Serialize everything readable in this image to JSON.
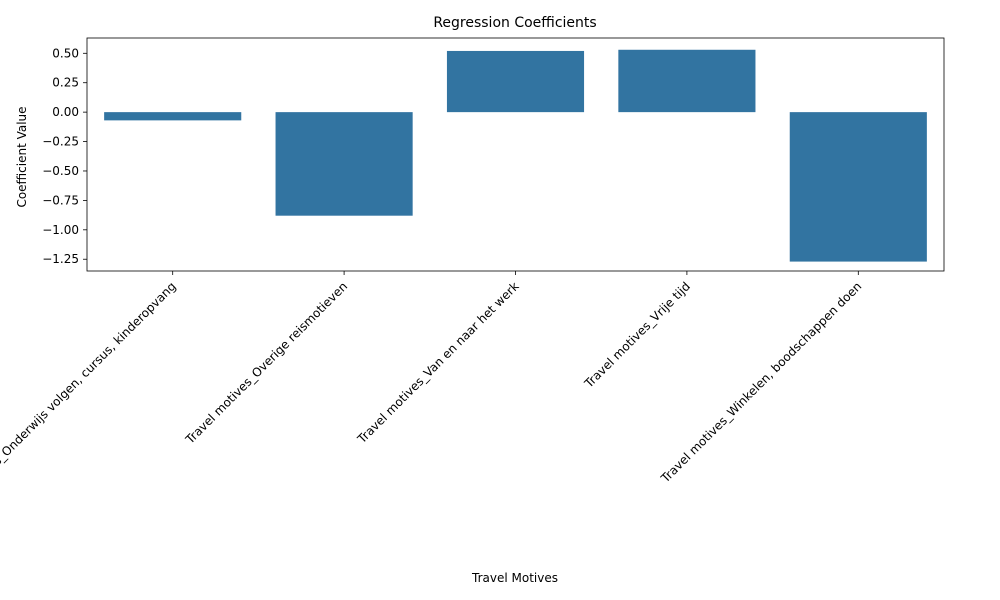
{
  "chart_data": {
    "type": "bar",
    "title": "Regression Coefficients",
    "xlabel": "Travel Motives",
    "ylabel": "Coefficient Value",
    "categories": [
      "Travel motives_Onderwijs volgen, cursus, kinderopvang",
      "Travel motives_Overige reismotieven",
      "Travel motives_Van en naar het werk",
      "Travel motives_Vrije tijd",
      "Travel motives_Winkelen, boodschappen doen"
    ],
    "values": [
      -0.07,
      -0.88,
      0.52,
      0.53,
      -1.27
    ],
    "ylim": [
      -1.35,
      0.63
    ],
    "yticks": [
      -1.25,
      -1.0,
      -0.75,
      -0.5,
      -0.25,
      0.0,
      0.25,
      0.5
    ],
    "ytick_labels": [
      "−1.25",
      "−1.00",
      "−0.75",
      "−0.50",
      "−0.25",
      "0.00",
      "0.25",
      "0.50"
    ],
    "bar_color": "#3274a1",
    "grid": false,
    "legend": "none"
  }
}
